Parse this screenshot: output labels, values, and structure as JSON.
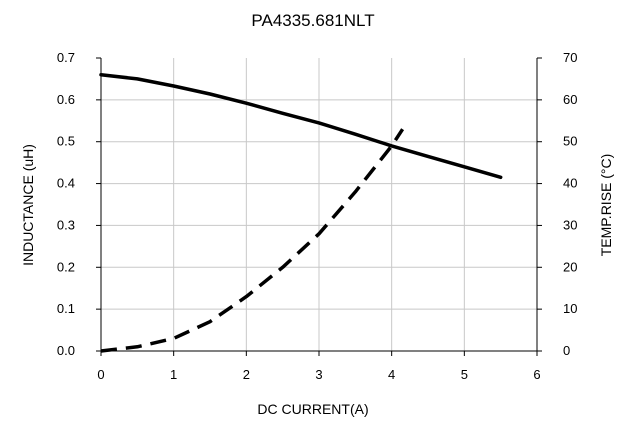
{
  "chart_data": {
    "type": "line",
    "title": "PA4335.681NLT",
    "xlabel": "DC CURRENT(A)",
    "ylabel": "INDUCTANCE (uH)",
    "y2label": "TEMP.RISE (°C)",
    "xlim": [
      0,
      6
    ],
    "ylim": [
      0,
      0.7
    ],
    "y2lim": [
      0,
      70
    ],
    "grid": true,
    "x_ticks": [
      "0",
      "1",
      "2",
      "3",
      "4",
      "5",
      "6"
    ],
    "y_ticks": [
      "0.0",
      "0.1",
      "0.2",
      "0.3",
      "0.4",
      "0.5",
      "0.6",
      "0.7"
    ],
    "y2_ticks": [
      "0",
      "10",
      "20",
      "30",
      "40",
      "50",
      "60",
      "70"
    ],
    "series": [
      {
        "axis": "left",
        "style": "solid",
        "color": "#000000",
        "x": [
          0,
          0.5,
          1.0,
          1.5,
          2.0,
          2.5,
          3.0,
          3.5,
          4.0,
          4.5,
          5.0,
          5.5
        ],
        "y": [
          0.66,
          0.65,
          0.633,
          0.614,
          0.592,
          0.568,
          0.545,
          0.518,
          0.49,
          0.465,
          0.44,
          0.415
        ]
      },
      {
        "axis": "right",
        "style": "dashed",
        "color": "#000000",
        "x": [
          0,
          0.5,
          1.0,
          1.5,
          2.0,
          2.5,
          3.0,
          3.5,
          4.0,
          4.15
        ],
        "y": [
          0,
          1,
          3,
          7,
          13,
          20,
          28,
          38,
          49,
          53
        ]
      }
    ]
  }
}
